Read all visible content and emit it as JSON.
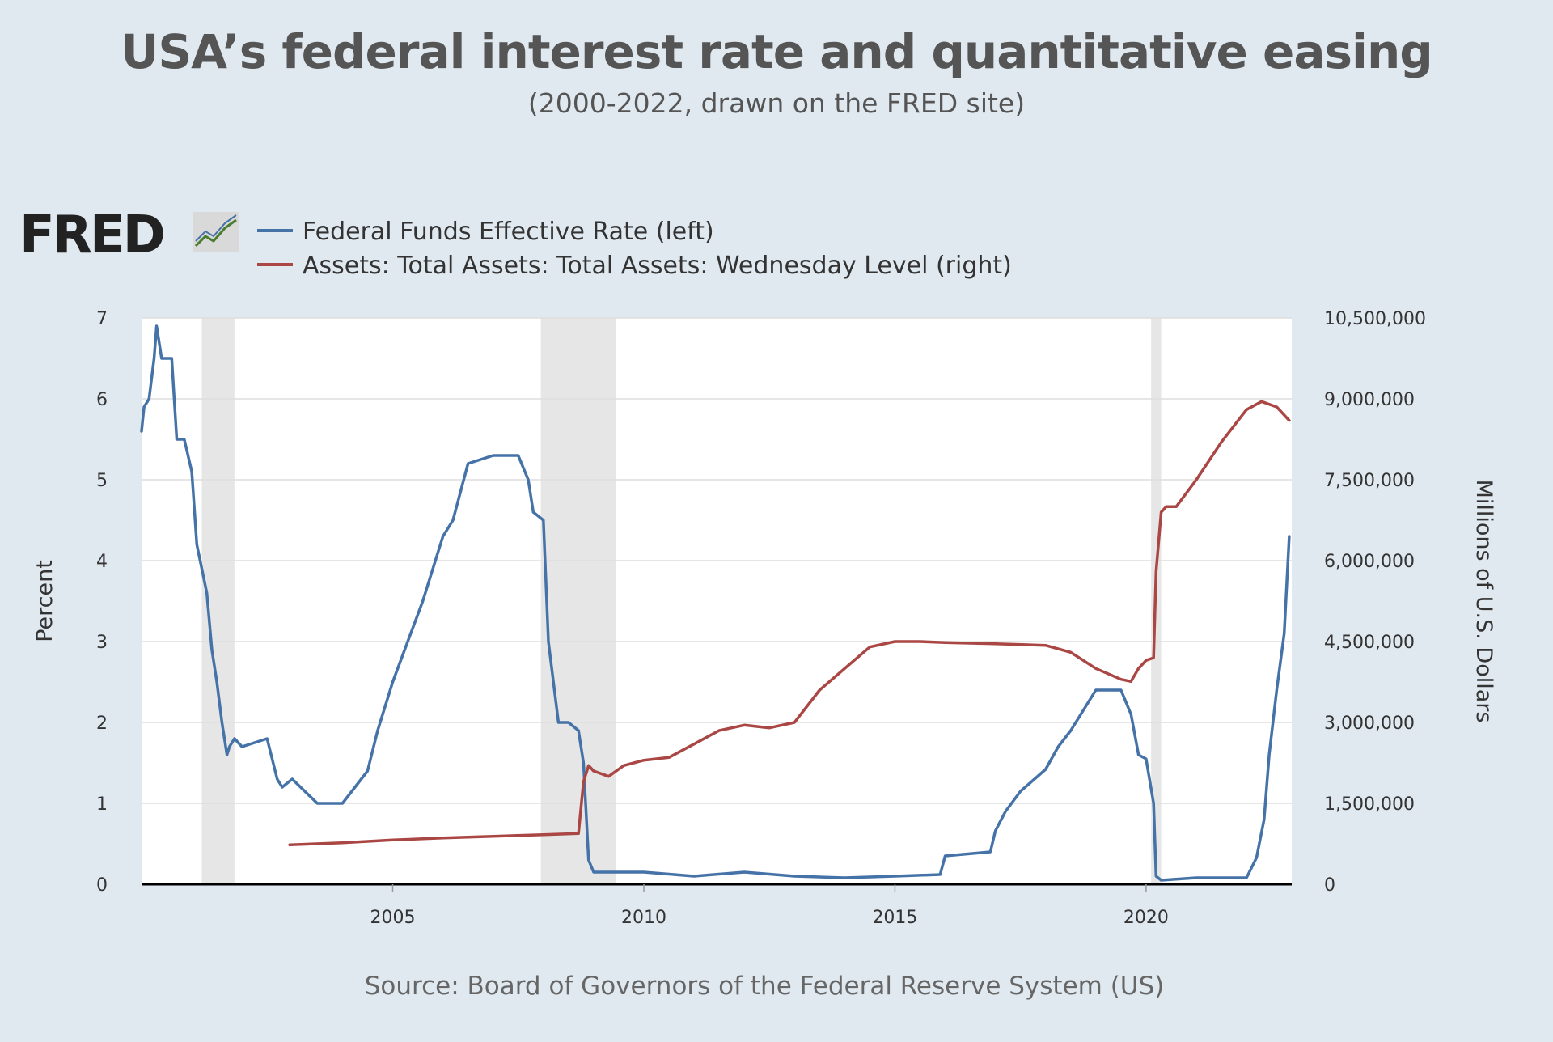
{
  "title": "USA’s federal interest rate and quantitative easing",
  "subtitle": "(2000-2022, drawn on the FRED site)",
  "logo_text": "FRED",
  "source": "Source: Board of Governors of the Federal Reserve System (US)",
  "colors": {
    "background": "#e1e9f0",
    "plot_background": "#ffffff",
    "recession_band": "#e6e6e6",
    "fed_funds": "#4572a7",
    "assets": "#aa4643",
    "grid": "#dddddd"
  },
  "chart_data": {
    "type": "line",
    "xlabel": "",
    "ylabel_left": "Percent",
    "ylabel_right": "Millions of U.S. Dollars",
    "xlim": [
      2000.0,
      2022.9
    ],
    "ylim_left": [
      0,
      7
    ],
    "ylim_right": [
      0,
      10500000
    ],
    "x_ticks": [
      "2005",
      "2010",
      "2015",
      "2020"
    ],
    "y_ticks_left": [
      "0",
      "1",
      "2",
      "3",
      "4",
      "5",
      "6",
      "7"
    ],
    "y_ticks_right": [
      "0",
      "1,500,000",
      "3,000,000",
      "4,500,000",
      "6,000,000",
      "7,500,000",
      "9,000,000",
      "10,500,000"
    ],
    "grid": true,
    "legend_position": "top-left",
    "recessions": [
      [
        2001.2,
        2001.85
      ],
      [
        2007.95,
        2009.45
      ],
      [
        2020.1,
        2020.3
      ]
    ],
    "series": [
      {
        "name": "Federal Funds Effective Rate (left)",
        "axis": "left",
        "x": [
          2000.0,
          2000.05,
          2000.15,
          2000.25,
          2000.3,
          2000.4,
          2000.5,
          2000.6,
          2000.7,
          2000.85,
          2001.0,
          2001.1,
          2001.2,
          2001.3,
          2001.4,
          2001.5,
          2001.6,
          2001.7,
          2001.75,
          2001.85,
          2002.0,
          2002.5,
          2002.7,
          2002.8,
          2003.0,
          2003.5,
          2003.6,
          2004.0,
          2004.5,
          2004.7,
          2005.0,
          2005.3,
          2005.6,
          2006.0,
          2006.2,
          2006.5,
          2007.0,
          2007.5,
          2007.7,
          2007.8,
          2008.0,
          2008.1,
          2008.3,
          2008.5,
          2008.7,
          2008.8,
          2008.9,
          2009.0,
          2010.0,
          2011.0,
          2012.0,
          2013.0,
          2014.0,
          2015.0,
          2015.9,
          2016.0,
          2016.9,
          2017.0,
          2017.2,
          2017.5,
          2018.0,
          2018.25,
          2018.5,
          2018.75,
          2019.0,
          2019.5,
          2019.7,
          2019.85,
          2020.0,
          2020.15,
          2020.2,
          2020.3,
          2021.0,
          2022.0,
          2022.2,
          2022.35,
          2022.45,
          2022.6,
          2022.75,
          2022.85
        ],
        "y": [
          5.6,
          5.9,
          6.0,
          6.5,
          6.9,
          6.5,
          6.5,
          6.5,
          5.5,
          5.5,
          5.1,
          4.2,
          3.9,
          3.6,
          2.9,
          2.5,
          2.0,
          1.6,
          1.7,
          1.8,
          1.7,
          1.8,
          1.3,
          1.2,
          1.3,
          1.0,
          1.0,
          1.0,
          1.4,
          1.9,
          2.5,
          3.0,
          3.5,
          4.3,
          4.5,
          5.2,
          5.3,
          5.3,
          5.0,
          4.6,
          4.5,
          3.0,
          2.0,
          2.0,
          1.9,
          1.5,
          0.3,
          0.15,
          0.15,
          0.1,
          0.15,
          0.1,
          0.08,
          0.1,
          0.12,
          0.35,
          0.4,
          0.66,
          0.9,
          1.15,
          1.42,
          1.7,
          1.9,
          2.15,
          2.4,
          2.4,
          2.1,
          1.6,
          1.55,
          1.0,
          0.1,
          0.05,
          0.08,
          0.08,
          0.33,
          0.8,
          1.6,
          2.4,
          3.1,
          4.3
        ]
      },
      {
        "name": "Assets: Total Assets: Total Assets: Wednesday Level (right)",
        "axis": "right",
        "x": [
          2002.95,
          2004.0,
          2005.0,
          2006.0,
          2007.0,
          2008.0,
          2008.7,
          2008.8,
          2008.9,
          2009.0,
          2009.3,
          2009.6,
          2010.0,
          2010.5,
          2011.0,
          2011.5,
          2012.0,
          2012.5,
          2013.0,
          2013.5,
          2014.0,
          2014.5,
          2015.0,
          2015.5,
          2016.0,
          2017.0,
          2018.0,
          2018.5,
          2019.0,
          2019.5,
          2019.7,
          2019.85,
          2020.0,
          2020.15,
          2020.2,
          2020.3,
          2020.4,
          2020.6,
          2021.0,
          2021.5,
          2022.0,
          2022.3,
          2022.6,
          2022.85
        ],
        "y": [
          730000,
          770000,
          820000,
          860000,
          890000,
          920000,
          940000,
          1900000,
          2200000,
          2100000,
          2000000,
          2200000,
          2300000,
          2350000,
          2600000,
          2850000,
          2950000,
          2900000,
          3000000,
          3600000,
          4000000,
          4400000,
          4500000,
          4500000,
          4480000,
          4460000,
          4430000,
          4300000,
          4000000,
          3800000,
          3760000,
          4000000,
          4150000,
          4200000,
          5800000,
          6900000,
          7000000,
          7000000,
          7500000,
          8200000,
          8800000,
          8950000,
          8850000,
          8600000
        ]
      }
    ]
  }
}
